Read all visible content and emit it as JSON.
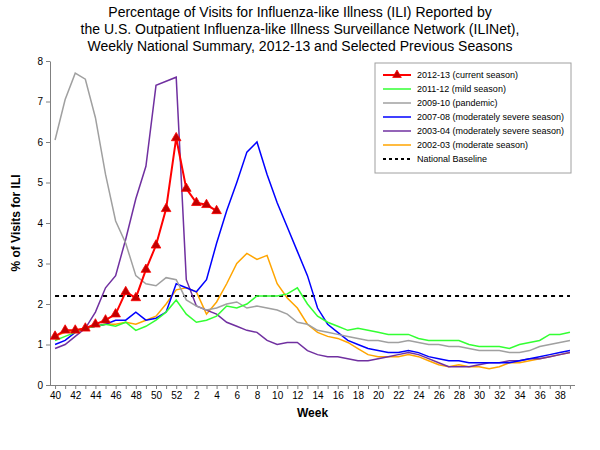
{
  "chart_data": {
    "type": "line",
    "title": [
      "Percentage of Visits for Influenza-like Illness (ILI) Reported by",
      "the U.S. Outpatient Influenza-like Illness Surveillance Network (ILINet),",
      "Weekly National Summary, 2012-13 and Selected Previous Seasons"
    ],
    "x_label": "Week",
    "y_label": "% of Visits for ILI",
    "categories": [
      "40",
      null,
      "42",
      null,
      "44",
      null,
      "46",
      null,
      "48",
      null,
      "50",
      null,
      "52",
      null,
      "2",
      null,
      "4",
      null,
      "6",
      null,
      "8",
      null,
      "10",
      null,
      "12",
      null,
      "14",
      null,
      "16",
      null,
      "18",
      null,
      "20",
      null,
      "22",
      null,
      "24",
      null,
      "26",
      null,
      "28",
      null,
      "30",
      null,
      "32",
      null,
      "34",
      null,
      "36",
      null,
      "38",
      null
    ],
    "ylim": [
      0,
      8
    ],
    "yticks": [
      0,
      1,
      2,
      3,
      4,
      5,
      6,
      7,
      8
    ],
    "grid": false,
    "legend": "upper right",
    "series": [
      {
        "name": "2012-13 (current season)",
        "color": "#ff0000",
        "marker": "triangle",
        "line_style": "solid",
        "values": [
          1.2,
          1.35,
          1.35,
          1.4,
          1.5,
          1.6,
          1.75,
          2.3,
          2.15,
          2.85,
          3.45,
          4.35,
          6.1,
          4.85,
          4.5,
          4.45,
          4.3,
          null,
          null,
          null,
          null,
          null,
          null,
          null,
          null,
          null,
          null,
          null,
          null,
          null,
          null,
          null,
          null,
          null,
          null,
          null,
          null,
          null,
          null,
          null,
          null,
          null,
          null,
          null,
          null,
          null,
          null,
          null,
          null,
          null,
          null,
          null
        ]
      },
      {
        "name": "2011-12 (mild season)",
        "color": "#33ff33",
        "line_style": "solid",
        "values": [
          1.1,
          1.2,
          1.3,
          1.4,
          1.45,
          1.5,
          1.45,
          1.55,
          1.35,
          1.45,
          1.6,
          1.8,
          2.1,
          1.75,
          1.55,
          1.6,
          1.7,
          1.95,
          1.9,
          2.0,
          2.2,
          2.2,
          2.2,
          2.25,
          2.4,
          2.0,
          1.7,
          1.55,
          1.45,
          1.35,
          1.4,
          1.35,
          1.3,
          1.25,
          1.25,
          1.25,
          1.15,
          1.1,
          1.1,
          1.1,
          1.1,
          1.0,
          0.95,
          0.95,
          0.95,
          0.9,
          1.0,
          1.05,
          1.1,
          1.25,
          1.25,
          1.3
        ]
      },
      {
        "name": "2009-10 (pandemic)",
        "color": "#a0a0a0",
        "line_style": "solid",
        "values": [
          6.05,
          7.05,
          7.7,
          7.55,
          6.6,
          5.2,
          4.05,
          3.5,
          2.7,
          2.5,
          2.45,
          2.65,
          2.6,
          2.1,
          1.95,
          1.85,
          1.9,
          2.0,
          2.05,
          1.9,
          1.95,
          1.9,
          1.85,
          1.75,
          1.55,
          1.5,
          1.35,
          1.3,
          1.25,
          1.2,
          1.15,
          1.1,
          1.1,
          1.05,
          1.05,
          1.1,
          1.05,
          1.0,
          1.0,
          0.95,
          0.95,
          0.9,
          0.85,
          0.85,
          0.85,
          0.8,
          0.8,
          0.85,
          0.95,
          1.0,
          1.05,
          1.1
        ]
      },
      {
        "name": "2007-08 (moderately severe season)",
        "color": "#0000ff",
        "line_style": "solid",
        "values": [
          1.0,
          1.1,
          1.3,
          1.4,
          1.45,
          1.5,
          1.6,
          1.6,
          1.8,
          1.6,
          1.65,
          1.8,
          2.5,
          2.4,
          2.3,
          2.6,
          3.5,
          4.3,
          5.0,
          5.75,
          6.0,
          5.2,
          4.5,
          3.9,
          3.3,
          2.7,
          1.9,
          1.5,
          1.3,
          1.1,
          1.0,
          0.9,
          0.85,
          0.8,
          0.8,
          0.85,
          0.8,
          0.7,
          0.65,
          0.6,
          0.6,
          0.55,
          0.55,
          0.55,
          0.55,
          0.55,
          0.6,
          0.65,
          0.7,
          0.75,
          0.8,
          0.85
        ]
      },
      {
        "name": "2003-04 (moderately severe season)",
        "color": "#7030a0",
        "line_style": "solid",
        "values": [
          0.9,
          1.0,
          1.2,
          1.4,
          1.8,
          2.4,
          2.7,
          3.6,
          4.6,
          5.4,
          7.4,
          7.5,
          7.6,
          2.6,
          1.95,
          1.85,
          1.75,
          1.55,
          1.45,
          1.35,
          1.3,
          1.1,
          1.0,
          1.05,
          1.05,
          0.85,
          0.75,
          0.7,
          0.7,
          0.65,
          0.6,
          0.6,
          0.65,
          0.7,
          0.75,
          0.8,
          0.75,
          0.65,
          0.55,
          0.45,
          0.45,
          0.45,
          0.5,
          0.55,
          0.55,
          0.6,
          0.6,
          0.65,
          0.65,
          0.7,
          0.75,
          0.8
        ]
      },
      {
        "name": "2002-03 (moderate season)",
        "color": "#ffa500",
        "line_style": "solid",
        "values": [
          1.2,
          1.3,
          1.35,
          1.4,
          1.45,
          1.5,
          1.5,
          1.55,
          1.5,
          1.6,
          1.7,
          2.0,
          2.35,
          2.4,
          2.3,
          1.75,
          2.05,
          2.5,
          3.0,
          3.25,
          3.1,
          3.2,
          2.5,
          2.15,
          1.9,
          1.5,
          1.3,
          1.2,
          1.15,
          1.05,
          0.9,
          0.75,
          0.7,
          0.7,
          0.7,
          0.75,
          0.7,
          0.6,
          0.5,
          0.45,
          0.5,
          0.45,
          0.45,
          0.4,
          0.45,
          0.55,
          0.55,
          0.6,
          0.65,
          0.7,
          0.75,
          0.8
        ]
      },
      {
        "name": "National Baseline",
        "color": "#000000",
        "line_style": "dashed",
        "values": [
          2.2,
          2.2,
          2.2,
          2.2,
          2.2,
          2.2,
          2.2,
          2.2,
          2.2,
          2.2,
          2.2,
          2.2,
          2.2,
          2.2,
          2.2,
          2.2,
          2.2,
          2.2,
          2.2,
          2.2,
          2.2,
          2.2,
          2.2,
          2.2,
          2.2,
          2.2,
          2.2,
          2.2,
          2.2,
          2.2,
          2.2,
          2.2,
          2.2,
          2.2,
          2.2,
          2.2,
          2.2,
          2.2,
          2.2,
          2.2,
          2.2,
          2.2,
          2.2,
          2.2,
          2.2,
          2.2,
          2.2,
          2.2,
          2.2,
          2.2,
          2.2,
          2.2
        ]
      }
    ]
  }
}
